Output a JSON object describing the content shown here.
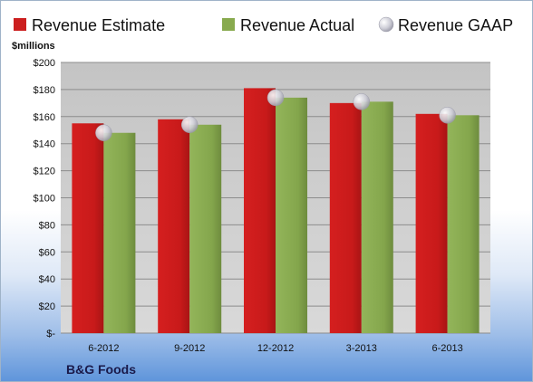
{
  "chart_data": {
    "type": "bar",
    "categories": [
      "6-2012",
      "9-2012",
      "12-2012",
      "3-2013",
      "6-2013"
    ],
    "series": [
      {
        "name": "Revenue Estimate",
        "values": [
          155,
          158,
          181,
          170,
          162
        ],
        "color": "#cc1f1f",
        "kind": "bar"
      },
      {
        "name": "Revenue Actual",
        "values": [
          148,
          154,
          174,
          171,
          161
        ],
        "color": "#88aa4e",
        "kind": "bar"
      },
      {
        "name": "Revenue GAAP",
        "values": [
          148,
          154,
          174,
          171,
          161
        ],
        "color": "#c8c8d2",
        "kind": "marker"
      }
    ],
    "ylabel": "$millions",
    "ylim": [
      0,
      200
    ],
    "yticks": [
      0,
      20,
      40,
      60,
      80,
      100,
      120,
      140,
      160,
      180,
      200
    ],
    "ytick_labels": [
      "$-",
      "$20",
      "$40",
      "$60",
      "$80",
      "$100",
      "$120",
      "$140",
      "$160",
      "$180",
      "$200"
    ],
    "grid": true,
    "legend_position": "top",
    "footer_label": "B&G Foods"
  }
}
